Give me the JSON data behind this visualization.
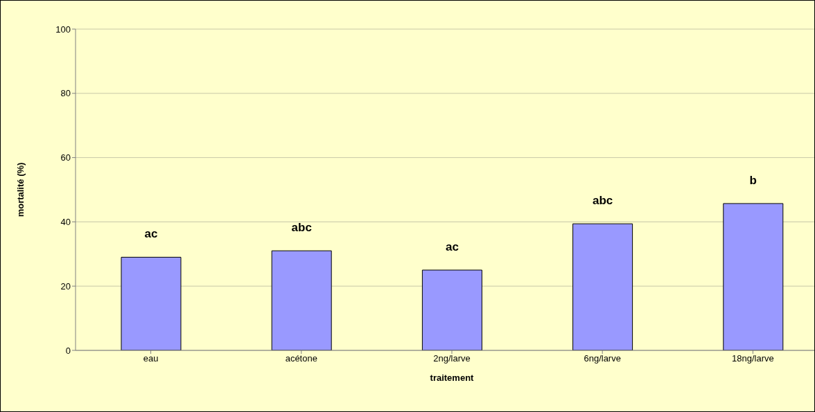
{
  "chart_data": {
    "type": "bar",
    "xlabel": "traitement",
    "ylabel": "mortalité (%)",
    "categories": [
      "eau",
      "acétone",
      "2ng/larve",
      "6ng/larve",
      "18ng/larve"
    ],
    "values": [
      29,
      31,
      25,
      39.4,
      45.7
    ],
    "color": "#9999ff",
    "ylim": [
      0,
      100
    ],
    "yticks": [
      0,
      20,
      40,
      60,
      80,
      100
    ],
    "grid": "y",
    "legend": false,
    "annotations": [
      "ac",
      "abc",
      "ac",
      "abc",
      "b"
    ]
  }
}
